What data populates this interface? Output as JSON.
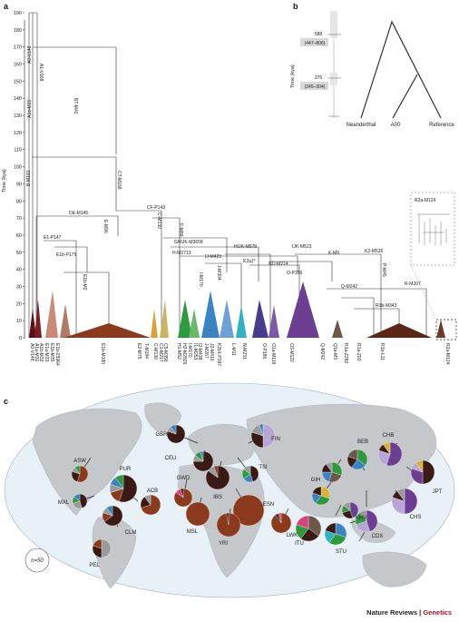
{
  "panel_a": {
    "letter": "a",
    "ylabel": "Time (kya)",
    "yticks": [
      "0",
      "10",
      "20",
      "30",
      "40",
      "50",
      "60",
      "70",
      "80",
      "90",
      "100",
      "110",
      "120",
      "130",
      "140",
      "150",
      "160",
      "170",
      "180",
      "190"
    ],
    "branch_labels": [
      "A1-V168",
      "A0-V148",
      "A1a-M31",
      "BT-M42",
      "B-M181",
      "CT-M168",
      "DE-M145",
      "E-M96",
      "E1-P147",
      "E1b-P179",
      "E1b-M2",
      "CF-P143",
      "C-M130",
      "F-M89",
      "GHIJK-M3658",
      "HIJK-M578",
      "IJK-M523",
      "IJ-M429",
      "H-M2713",
      "I-M170",
      "J-M304",
      "K2a1*",
      "NO-M214",
      "K-M9",
      "K2-M526",
      "P-M45",
      "O-P186",
      "Q-M242",
      "R-M207",
      "R1b-M343",
      "R2a-M124"
    ],
    "tip_labels": [
      "A0-V148",
      "A1a-M31",
      "A1b-M32",
      "E1a-M33",
      "E1b-M35",
      "E1b-Z5964",
      "E1b-M180",
      "E2-M75",
      "C-M130",
      "C1-M217",
      "C5-M356",
      "H1-M52",
      "H2-M2826",
      "I-M170",
      "I1-M253",
      "I2-M438",
      "J-M267",
      "J2-M410",
      "K2b1-P397",
      "L-M11",
      "N-M231",
      "O-P186",
      "O3-M122",
      "Q-M242",
      "Q1a-M3",
      "R1a-Z282",
      "R1a-Z93",
      "R1b-L11",
      "R2a-M124",
      "T-M184",
      "O1a-M119"
    ],
    "inset_label": "R2a-M124"
  },
  "panel_b": {
    "letter": "b",
    "ylabel": "Time (kya)",
    "node1_value": "588",
    "node1_range": "(447–806)",
    "node2_value": "275",
    "node2_range": "(245–304)",
    "tips": [
      "Neanderthal",
      "A00",
      "Reference"
    ]
  },
  "panel_c": {
    "letter": "c",
    "sample_size": "n=50",
    "populations": [
      "ASW",
      "PUR",
      "MXL",
      "CLM",
      "ACB",
      "PEL",
      "GBR",
      "CEU",
      "IBS",
      "TSI",
      "FIN",
      "GWD",
      "MSL",
      "ESN",
      "YRI",
      "LWK",
      "PJL",
      "GIH",
      "BEB",
      "ITU",
      "STU",
      "CDX",
      "KHV",
      "CHB",
      "JPT",
      "CHS"
    ]
  },
  "colors": {
    "haplogroup_brown": "#8b3a1e",
    "dark": "#3a1a14",
    "ocean": "#e8f1f6",
    "land": "#c5c8cb",
    "accent_green": "#2e9a3e",
    "accent_purple": "#6c3f93",
    "accent_blue": "#3a84c4"
  },
  "footer": {
    "journal": "Nature Reviews",
    "separator": " | ",
    "section": "Genetics"
  }
}
